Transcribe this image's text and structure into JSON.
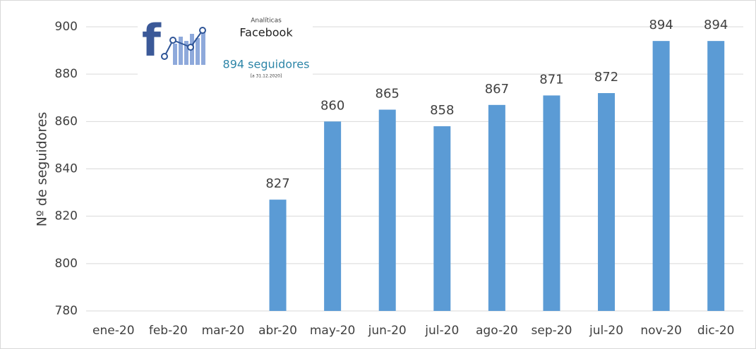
{
  "chart_data": {
    "type": "bar",
    "y_label": "Nº de seguidores",
    "categories": [
      "ene-20",
      "feb-20",
      "mar-20",
      "abr-20",
      "may-20",
      "jun-20",
      "jul-20",
      "ago-20",
      "sep-20",
      "jul-20",
      "nov-20",
      "dic-20"
    ],
    "values": [
      null,
      null,
      null,
      827,
      860,
      865,
      858,
      867,
      871,
      872,
      894,
      894
    ],
    "color": "#5b9bd5",
    "ylim": [
      780,
      900
    ],
    "yticks": [
      780,
      800,
      820,
      840,
      860,
      880,
      900
    ],
    "grid": true,
    "inset": {
      "label": "Analíticas",
      "title": "Facebook",
      "count": "894 seguidores",
      "date": "[a 31.12.2020]"
    }
  }
}
